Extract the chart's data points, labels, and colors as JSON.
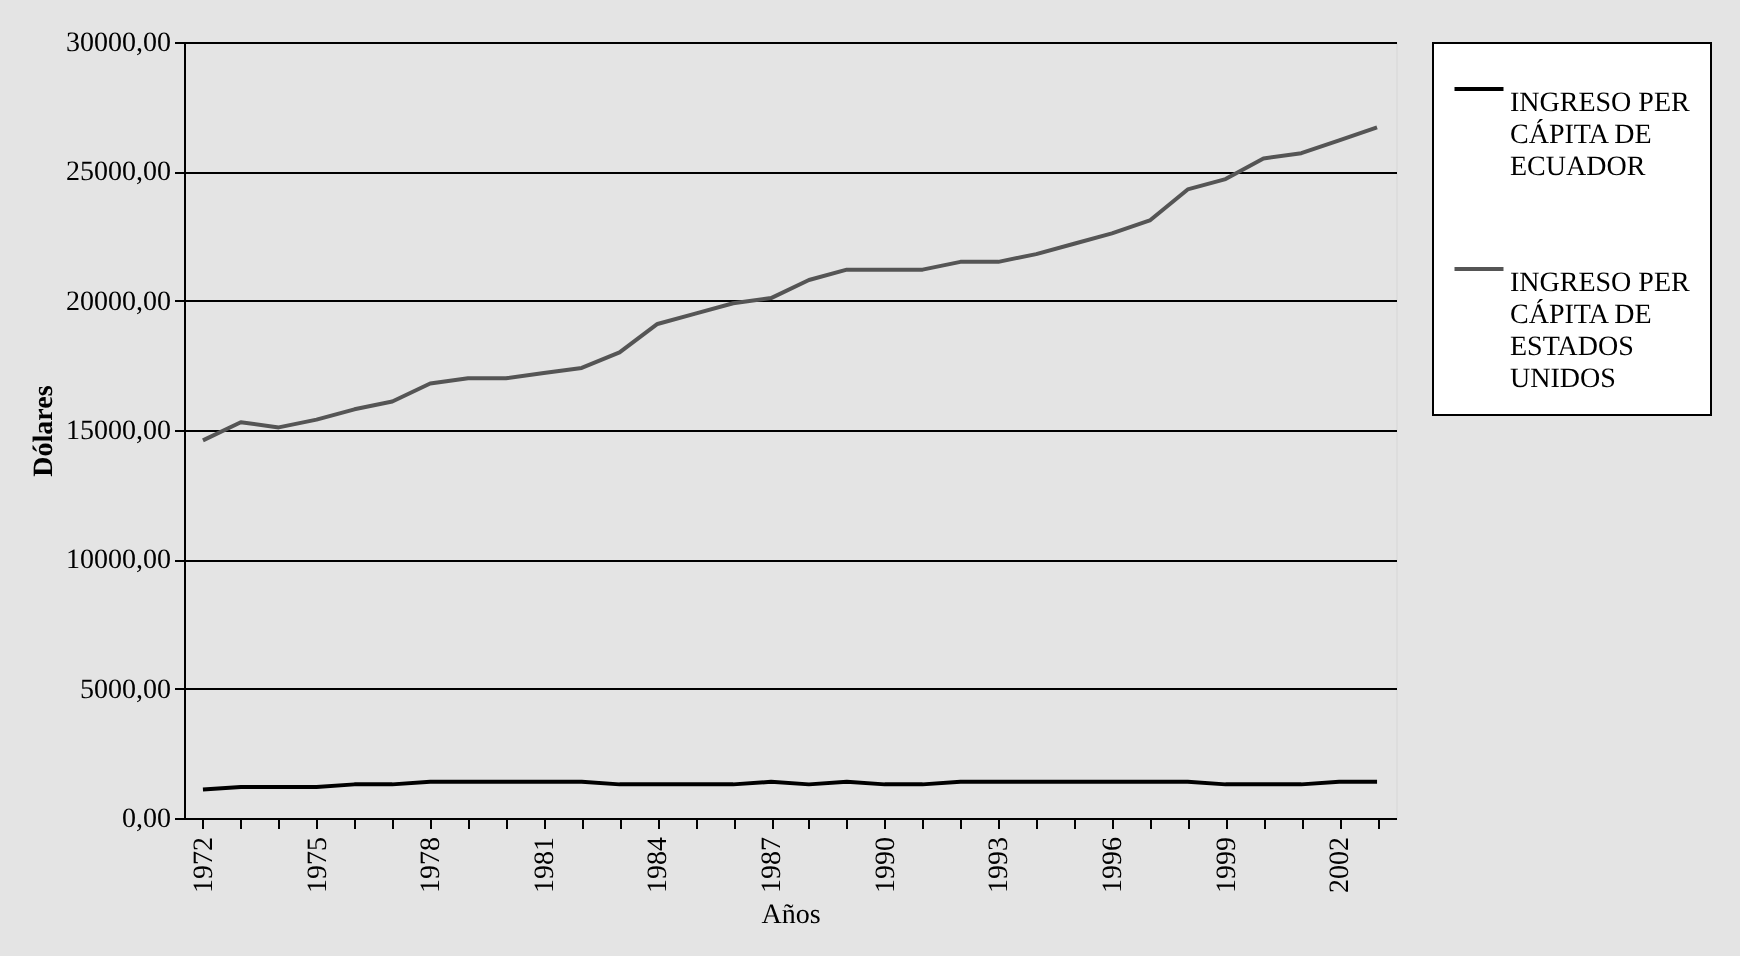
{
  "chart_data": {
    "type": "line",
    "xlabel": "Años",
    "ylabel": "Dólares",
    "categories": [
      "1972",
      null,
      null,
      "1975",
      null,
      null,
      "1978",
      null,
      null,
      "1981",
      null,
      null,
      "1984",
      null,
      null,
      "1987",
      null,
      null,
      "1990",
      null,
      null,
      "1993",
      null,
      null,
      "1996",
      null,
      null,
      "1999",
      null,
      null,
      "2002",
      null
    ],
    "series": [
      {
        "name": "INGRESO PER CÁPITA DE ECUADOR",
        "color": "#000000",
        "values": [
          1100,
          1200,
          1200,
          1200,
          1300,
          1300,
          1400,
          1400,
          1400,
          1400,
          1400,
          1300,
          1300,
          1300,
          1300,
          1400,
          1300,
          1400,
          1300,
          1300,
          1400,
          1400,
          1400,
          1400,
          1400,
          1400,
          1400,
          1300,
          1300,
          1300,
          1400,
          1400
        ]
      },
      {
        "name": "INGRESO PER CÁPITA DE ESTADOS UNIDOS",
        "color": "#555555",
        "values": [
          14600,
          15300,
          15100,
          15400,
          15800,
          16100,
          16800,
          17000,
          17000,
          17200,
          17400,
          18000,
          19100,
          19500,
          19900,
          20100,
          20800,
          21200,
          21200,
          21200,
          21500,
          21500,
          21800,
          22200,
          22600,
          23100,
          24300,
          24700,
          25500,
          25700,
          26200,
          26700
        ]
      }
    ],
    "ylim": [
      0,
      30000
    ],
    "yticks": [
      {
        "value": 0,
        "label": "0,00"
      },
      {
        "value": 5000,
        "label": "5000,00"
      },
      {
        "value": 10000,
        "label": "10000,00"
      },
      {
        "value": 15000,
        "label": "15000,00"
      },
      {
        "value": 20000,
        "label": "20000,00"
      },
      {
        "value": 25000,
        "label": "25000,00"
      },
      {
        "value": 30000,
        "label": "30000,00"
      }
    ],
    "grid": "y",
    "legend": "right",
    "marker": "none",
    "line_style": "solid"
  }
}
